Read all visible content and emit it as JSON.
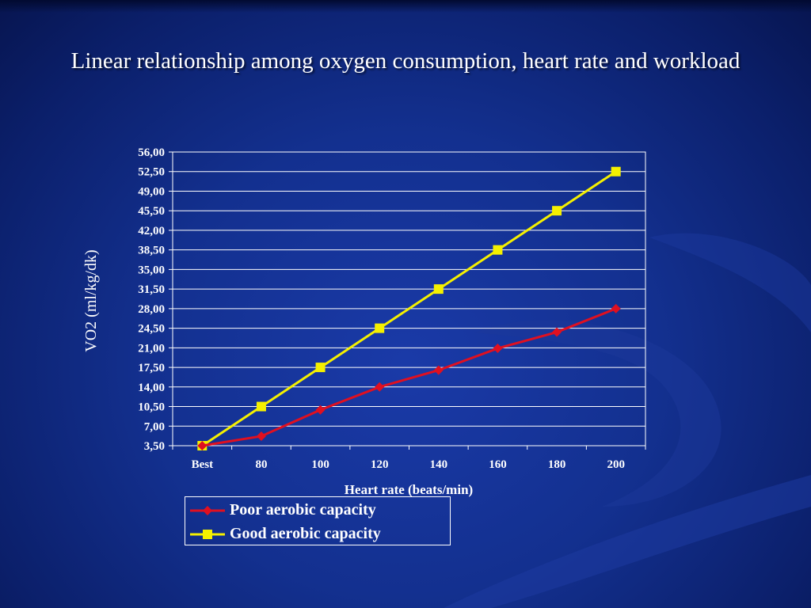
{
  "title": "Linear relationship among oxygen consumption, heart rate and workload",
  "colors": {
    "background": "#13308f",
    "poor_series": "#e01020",
    "good_series": "#f5f000",
    "text": "#ffffff",
    "gridline": "#ffffff"
  },
  "chart_data": {
    "type": "line",
    "xlabel": "Heart rate (beats/min)",
    "ylabel": "VO2 (ml/kg/dk)",
    "categories": [
      "Best",
      "80",
      "100",
      "120",
      "140",
      "160",
      "180",
      "200"
    ],
    "ylim": [
      3.5,
      56.0
    ],
    "yticks": [
      "3,50",
      "7,00",
      "10,50",
      "14,00",
      "17,50",
      "21,00",
      "24,50",
      "28,00",
      "31,50",
      "35,00",
      "38,50",
      "42,00",
      "45,50",
      "49,00",
      "52,50",
      "56,00"
    ],
    "grid": true,
    "legend_position": "bottom",
    "series": [
      {
        "name": "Poor aerobic capacity",
        "color": "#e01020",
        "marker": "diamond",
        "values": [
          3.5,
          5.2,
          9.9,
          14.0,
          17.0,
          20.9,
          23.8,
          28.0
        ]
      },
      {
        "name": "Good aerobic capacity",
        "color": "#f5f000",
        "marker": "square",
        "values": [
          3.5,
          10.5,
          17.5,
          24.5,
          31.5,
          38.5,
          45.5,
          52.5
        ]
      }
    ]
  }
}
